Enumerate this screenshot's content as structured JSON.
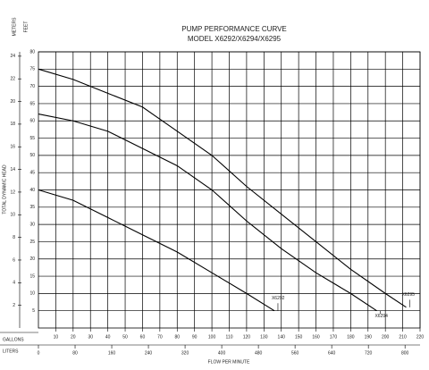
{
  "chart_data": {
    "type": "line",
    "title": "PUMP PERFORMANCE CURVE",
    "subtitle": "MODEL X6292/X6294/X6295",
    "y_label": "TOTAL DYNAMIC HEAD",
    "y_unit_label": "FEET",
    "y2_unit_label": "METERS",
    "x_label": "FLOW PER MINUTE",
    "x_unit_label": "GALLONS",
    "x2_unit_label": "LITERS",
    "xlim": [
      0,
      220
    ],
    "xticks": [
      10,
      20,
      30,
      40,
      50,
      60,
      70,
      80,
      90,
      100,
      110,
      120,
      130,
      140,
      150,
      160,
      170,
      180,
      190,
      200,
      210,
      220
    ],
    "x2lim": [
      0,
      832.8
    ],
    "x2ticks": [
      0,
      80,
      160,
      240,
      320,
      400,
      480,
      560,
      640,
      720,
      800
    ],
    "ylim": [
      0,
      80
    ],
    "yticks": [
      5,
      10,
      15,
      20,
      25,
      30,
      35,
      40,
      45,
      50,
      55,
      60,
      65,
      70,
      75,
      80
    ],
    "y2lim": [
      0,
      24.384
    ],
    "y2ticks": [
      2,
      4,
      6,
      8,
      10,
      12,
      14,
      16,
      18,
      20,
      22,
      24
    ],
    "grid": true,
    "series": [
      {
        "name": "X6292",
        "color": "#000000",
        "x": [
          0,
          20,
          40,
          60,
          80,
          100,
          120,
          136
        ],
        "values": [
          40,
          37,
          32,
          27,
          22,
          16,
          10,
          5
        ]
      },
      {
        "name": "X6294",
        "color": "#000000",
        "x": [
          0,
          20,
          40,
          60,
          80,
          100,
          120,
          140,
          160,
          180,
          195
        ],
        "values": [
          62,
          60,
          57,
          52,
          47,
          40,
          31,
          23,
          16,
          10,
          5
        ]
      },
      {
        "name": "X6295",
        "color": "#000000",
        "x": [
          0,
          20,
          40,
          60,
          80,
          100,
          120,
          140,
          160,
          180,
          200,
          212
        ],
        "values": [
          75,
          72,
          68,
          64,
          57,
          50,
          41,
          33,
          25,
          17,
          10,
          6
        ]
      }
    ]
  }
}
